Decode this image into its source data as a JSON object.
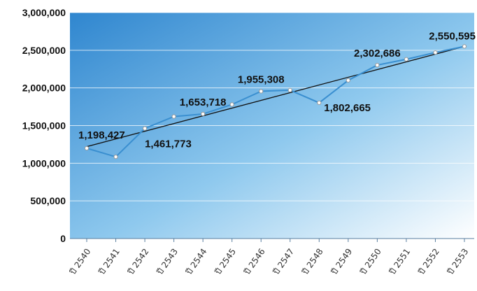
{
  "chart_data": {
    "type": "line",
    "title": "",
    "xlabel": "",
    "ylabel": "",
    "categories": [
      "ปี 2540",
      "ปี 2541",
      "ปี 2542",
      "ปี 2543",
      "ปี 2544",
      "ปี 2545",
      "ปี 2546",
      "ปี 2547",
      "ปี 2548",
      "ปี 2549",
      "ปี 2550",
      "ปี 2551",
      "ปี 2552",
      "ปี 2553"
    ],
    "series": [
      {
        "values": [
          1198427,
          1085000,
          1461773,
          1620000,
          1653718,
          1780000,
          1955308,
          1970000,
          1802665,
          2100000,
          2302686,
          2380000,
          2470000,
          2550595
        ],
        "color": "#3a8fd0"
      }
    ],
    "trendline": {
      "from": 1220000,
      "to": 2550595,
      "color": "#111111"
    },
    "data_labels": [
      {
        "index": 0,
        "text": "1,198,427",
        "position": "above"
      },
      {
        "index": 2,
        "text": "1,461,773",
        "position": "below"
      },
      {
        "index": 4,
        "text": "1,653,718",
        "position": "above"
      },
      {
        "index": 6,
        "text": "1,955,308",
        "position": "above"
      },
      {
        "index": 8,
        "text": "1,802,665",
        "position": "right"
      },
      {
        "index": 10,
        "text": "2,302,686",
        "position": "above"
      },
      {
        "index": 13,
        "text": "2,550,595",
        "position": "above"
      }
    ],
    "y_ticks": [
      "0",
      "500,000",
      "1,000,000",
      "1,500,000",
      "2,000,000",
      "2,500,000",
      "3,000,000"
    ],
    "ylim": [
      0,
      3000000
    ],
    "grid": true,
    "background_gradient": [
      "#2f86cf",
      "#ffffff"
    ]
  }
}
